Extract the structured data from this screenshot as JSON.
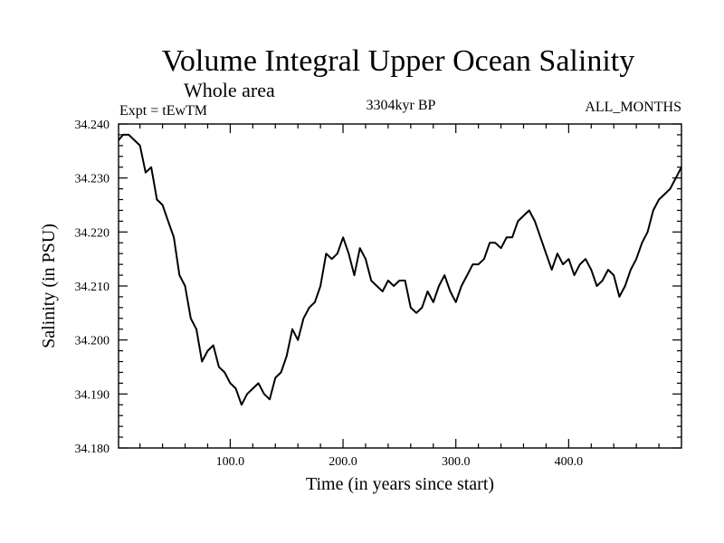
{
  "chart_data": {
    "type": "line",
    "title": "Volume Integral Upper Ocean Salinity",
    "subtitle": "Whole area",
    "left_label": "Expt = tEwTM",
    "center_label": "3304kyr BP",
    "right_label": "ALL_MONTHS",
    "xlabel": "Time (in years since start)",
    "ylabel": "Salinity (in PSU)",
    "xlim": [
      1,
      500
    ],
    "ylim": [
      34.18,
      34.24
    ],
    "x_ticks": [
      100,
      200,
      300,
      400
    ],
    "x_tick_labels": [
      "100.0",
      "200.0",
      "300.0",
      "400.0"
    ],
    "y_ticks": [
      34.18,
      34.19,
      34.2,
      34.21,
      34.22,
      34.23,
      34.24
    ],
    "y_tick_labels": [
      "34.180",
      "34.190",
      "34.200",
      "34.210",
      "34.220",
      "34.230",
      "34.240"
    ],
    "grid": false,
    "series": [
      {
        "name": "salinity",
        "x": [
          1,
          5,
          10,
          15,
          20,
          25,
          30,
          35,
          40,
          45,
          50,
          55,
          60,
          65,
          70,
          75,
          80,
          85,
          90,
          95,
          100,
          105,
          110,
          115,
          120,
          125,
          130,
          135,
          140,
          145,
          150,
          155,
          160,
          165,
          170,
          175,
          180,
          185,
          190,
          195,
          200,
          205,
          210,
          215,
          220,
          225,
          230,
          235,
          240,
          245,
          250,
          255,
          260,
          265,
          270,
          275,
          280,
          285,
          290,
          295,
          300,
          305,
          310,
          315,
          320,
          325,
          330,
          335,
          340,
          345,
          350,
          355,
          360,
          365,
          370,
          375,
          380,
          385,
          390,
          395,
          400,
          405,
          410,
          415,
          420,
          425,
          430,
          435,
          440,
          445,
          450,
          455,
          460,
          465,
          470,
          475,
          480,
          485,
          490,
          495,
          500
        ],
        "values": [
          34.237,
          34.238,
          34.238,
          34.237,
          34.236,
          34.231,
          34.232,
          34.226,
          34.225,
          34.222,
          34.219,
          34.212,
          34.21,
          34.204,
          34.202,
          34.196,
          34.198,
          34.199,
          34.195,
          34.194,
          34.192,
          34.191,
          34.188,
          34.19,
          34.191,
          34.192,
          34.19,
          34.189,
          34.193,
          34.194,
          34.197,
          34.202,
          34.2,
          34.204,
          34.206,
          34.207,
          34.21,
          34.216,
          34.215,
          34.216,
          34.219,
          34.216,
          34.212,
          34.217,
          34.215,
          34.211,
          34.21,
          34.209,
          34.211,
          34.21,
          34.211,
          34.211,
          34.206,
          34.205,
          34.206,
          34.209,
          34.207,
          34.21,
          34.212,
          34.209,
          34.207,
          34.21,
          34.212,
          34.214,
          34.214,
          34.215,
          34.218,
          34.218,
          34.217,
          34.219,
          34.219,
          34.222,
          34.223,
          34.224,
          34.222,
          34.219,
          34.216,
          34.213,
          34.216,
          34.214,
          34.215,
          34.212,
          34.214,
          34.215,
          34.213,
          34.21,
          34.211,
          34.213,
          34.212,
          34.208,
          34.21,
          34.213,
          34.215,
          34.218,
          34.22,
          34.224,
          34.226,
          34.227,
          34.228,
          34.23,
          34.232
        ]
      }
    ]
  }
}
